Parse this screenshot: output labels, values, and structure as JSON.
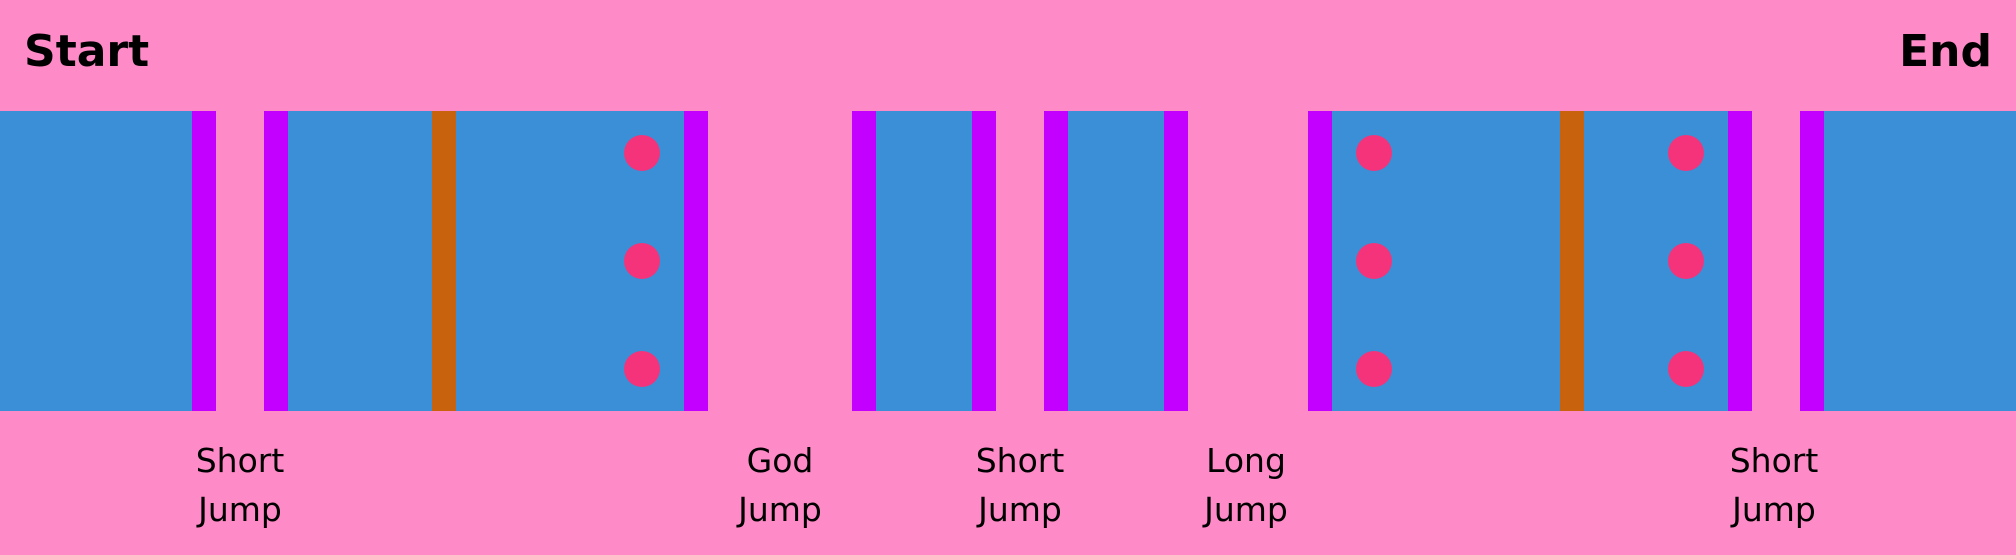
{
  "title_start": "Start",
  "title_end": "End",
  "colors": {
    "background": "#ff8ac8",
    "platform": "#3a8fd6",
    "edge": "#c300ff",
    "divider": "#c8620c",
    "marker": "#f5337a"
  },
  "jumps": [
    {
      "line1": "Short",
      "line2": "Jump"
    },
    {
      "line1": "God",
      "line2": "Jump"
    },
    {
      "line1": "Short",
      "line2": "Jump"
    },
    {
      "line1": "Long",
      "line2": "Jump"
    },
    {
      "line1": "Short",
      "line2": "Jump"
    }
  ]
}
